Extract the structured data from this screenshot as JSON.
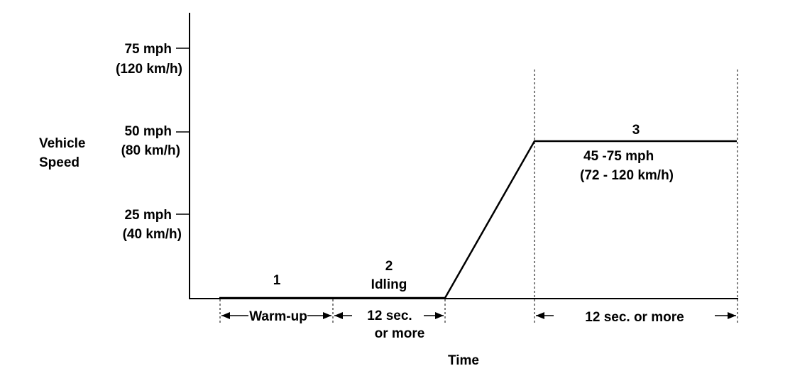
{
  "y_axis": {
    "label_lines": [
      "Vehicle",
      "Speed"
    ],
    "ticks": [
      {
        "mph": "75 mph",
        "kmh": "(120 km/h)"
      },
      {
        "mph": "50 mph",
        "kmh": "(80 km/h)"
      },
      {
        "mph": "25 mph",
        "kmh": "(40 km/h)"
      }
    ]
  },
  "x_axis": {
    "label": "Time"
  },
  "phases": [
    {
      "number": "1",
      "duration": "Warm-up"
    },
    {
      "number": "2",
      "name": "Idling",
      "duration_lines": [
        "12 sec.",
        "or more"
      ]
    },
    {
      "number": "3",
      "speed_range": "45 -75 mph",
      "speed_range_kmh": "(72 - 120 km/h)",
      "duration": "12 sec. or more"
    }
  ]
}
